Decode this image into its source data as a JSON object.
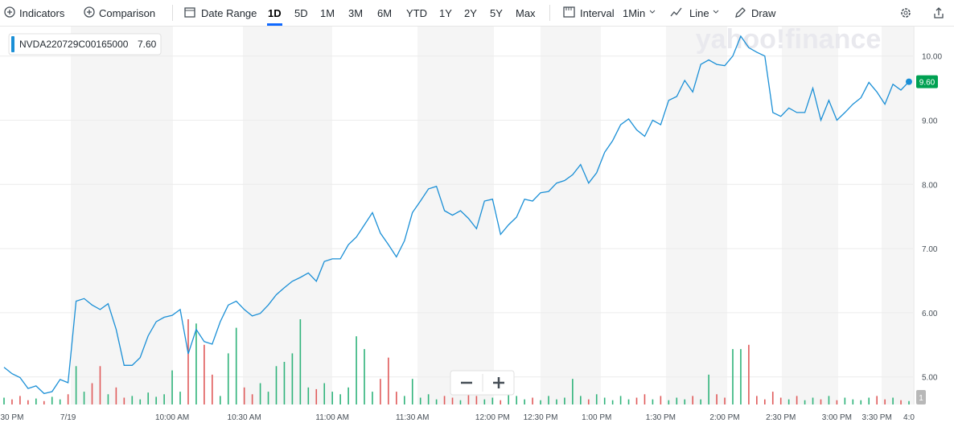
{
  "toolbar": {
    "indicators": "Indicators",
    "comparison": "Comparison",
    "date_range": "Date Range",
    "ranges": [
      "1D",
      "5D",
      "1M",
      "3M",
      "6M",
      "YTD",
      "1Y",
      "2Y",
      "5Y",
      "Max"
    ],
    "selected_range": "1D",
    "interval_label": "Interval",
    "interval": "1Min",
    "chart_style": "Line",
    "draw": "Draw"
  },
  "chart_data": {
    "type": "line",
    "watermark": "yahoo!finance",
    "legend_value": "7.60",
    "last_price_label": "9.60",
    "volume_label": "1",
    "categories": [
      null,
      "30 PM",
      null,
      null,
      null,
      null,
      null,
      null,
      "7/19",
      null,
      null,
      null,
      null,
      null,
      null,
      null,
      null,
      null,
      null,
      null,
      null,
      "10:00 AM",
      null,
      null,
      null,
      null,
      null,
      null,
      null,
      null,
      "10:30 AM",
      null,
      null,
      null,
      null,
      null,
      null,
      null,
      null,
      null,
      null,
      "11:00 AM",
      null,
      null,
      null,
      null,
      null,
      null,
      null,
      null,
      null,
      "11:30 AM",
      null,
      null,
      null,
      null,
      null,
      null,
      null,
      null,
      null,
      "12:00 PM",
      null,
      null,
      null,
      null,
      null,
      "12:30 PM",
      null,
      null,
      null,
      null,
      null,
      null,
      "1:00 PM",
      null,
      null,
      null,
      null,
      null,
      null,
      null,
      "1:30 PM",
      null,
      null,
      null,
      null,
      null,
      null,
      null,
      "2:00 PM",
      null,
      null,
      null,
      null,
      null,
      null,
      "2:30 PM",
      null,
      null,
      null,
      null,
      null,
      null,
      "3:00 PM",
      null,
      null,
      null,
      null,
      "3:30 PM",
      null,
      null,
      null,
      "4:0"
    ],
    "series": [
      {
        "name": "NVDA220729C00165000",
        "color": "#1a8fd6",
        "values": [
          5.15,
          5.05,
          4.99,
          4.82,
          4.86,
          4.74,
          4.77,
          4.96,
          4.91,
          6.18,
          6.22,
          6.12,
          6.05,
          6.14,
          5.74,
          5.18,
          5.18,
          5.3,
          5.64,
          5.86,
          5.93,
          5.96,
          6.05,
          5.36,
          5.74,
          5.55,
          5.51,
          5.86,
          6.12,
          6.18,
          6.05,
          5.95,
          5.99,
          6.12,
          6.28,
          6.39,
          6.49,
          6.55,
          6.62,
          6.49,
          6.8,
          6.84,
          6.84,
          7.06,
          7.18,
          7.37,
          7.56,
          7.24,
          7.06,
          6.87,
          7.12,
          7.56,
          7.74,
          7.93,
          7.97,
          7.59,
          7.52,
          7.59,
          7.47,
          7.31,
          7.74,
          7.77,
          7.22,
          7.37,
          7.49,
          7.77,
          7.74,
          7.87,
          7.89,
          8.02,
          8.06,
          8.15,
          8.31,
          8.02,
          8.18,
          8.5,
          8.68,
          8.93,
          9.02,
          8.85,
          8.75,
          9.0,
          8.93,
          9.31,
          9.37,
          9.62,
          9.44,
          9.87,
          9.94,
          9.87,
          9.85,
          10.0,
          10.31,
          10.13,
          10.06,
          10.0,
          9.12,
          9.06,
          9.19,
          9.12,
          9.12,
          9.5,
          9.0,
          9.31,
          9.0,
          9.12,
          9.25,
          9.35,
          9.59,
          9.44,
          9.25,
          9.56,
          9.47,
          9.6
        ]
      },
      {
        "axis": "y2",
        "up_color": "#2fb37a",
        "down_color": "#e05a5a",
        "values": [
          8,
          6,
          10,
          5,
          7,
          4,
          9,
          6,
          12,
          45,
          15,
          25,
          45,
          12,
          20,
          8,
          10,
          6,
          14,
          9,
          12,
          40,
          15,
          100,
          95,
          70,
          35,
          10,
          60,
          90,
          20,
          12,
          25,
          15,
          45,
          50,
          60,
          100,
          20,
          18,
          25,
          15,
          12,
          20,
          80,
          65,
          15,
          30,
          55,
          15,
          10,
          30,
          8,
          12,
          6,
          10,
          8,
          5,
          12,
          10,
          6,
          8,
          5,
          15,
          10,
          6,
          8,
          5,
          10,
          6,
          8,
          30,
          10,
          6,
          12,
          8,
          5,
          10,
          6,
          8,
          12,
          6,
          10,
          5,
          8,
          6,
          10,
          6,
          35,
          12,
          8,
          65,
          65,
          70,
          10,
          6,
          15,
          8,
          6,
          10,
          5,
          8,
          6,
          10,
          5,
          8,
          6,
          5,
          8,
          10,
          6,
          8,
          5,
          4
        ]
      }
    ],
    "ylim": [
      4.57,
      10.46
    ],
    "yticks": [
      {
        "value": 5,
        "label": "5.00"
      },
      {
        "value": 6,
        "label": "6.00"
      },
      {
        "value": 7,
        "label": "7.00"
      },
      {
        "value": 8,
        "label": "8.00"
      },
      {
        "value": 9,
        "label": "9.00"
      },
      {
        "value": 10,
        "label": "10.00"
      }
    ],
    "y2lim": [
      0,
      100
    ],
    "grid": true
  }
}
